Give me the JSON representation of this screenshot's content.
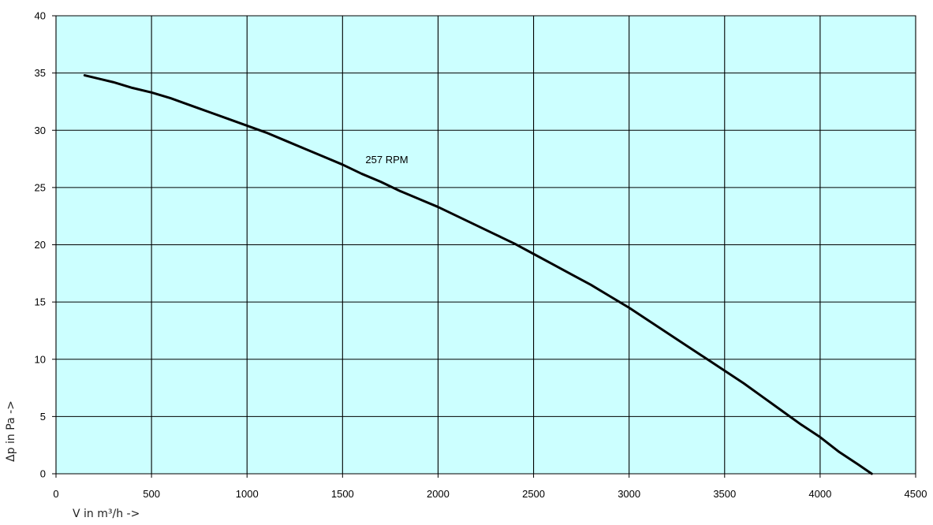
{
  "chart_data": {
    "type": "line",
    "title": "",
    "xlabel": "V in m³/h ->",
    "ylabel": "Δp in Pa ->",
    "xlim": [
      0,
      4500
    ],
    "ylim": [
      0,
      40
    ],
    "x_ticks": [
      0,
      500,
      1000,
      1500,
      2000,
      2500,
      3000,
      3500,
      4000,
      4500
    ],
    "y_ticks": [
      0,
      5,
      10,
      15,
      20,
      25,
      30,
      35,
      40
    ],
    "grid": true,
    "legend": "none",
    "plot_background": "#ccffff",
    "series": [
      {
        "name": "257 RPM",
        "color": "#000000",
        "x": [
          150,
          200,
          300,
          400,
          500,
          600,
          700,
          800,
          900,
          1000,
          1100,
          1200,
          1300,
          1400,
          1500,
          1600,
          1700,
          1800,
          1900,
          2000,
          2100,
          2200,
          2300,
          2400,
          2500,
          2600,
          2700,
          2800,
          2900,
          3000,
          3100,
          3200,
          3300,
          3400,
          3500,
          3600,
          3700,
          3800,
          3900,
          4000,
          4100,
          4200,
          4270
        ],
        "y": [
          34.8,
          34.6,
          34.2,
          33.7,
          33.3,
          32.8,
          32.2,
          31.6,
          31.0,
          30.4,
          29.8,
          29.1,
          28.4,
          27.7,
          27.0,
          26.2,
          25.5,
          24.7,
          24.0,
          23.3,
          22.5,
          21.7,
          20.9,
          20.1,
          19.2,
          18.3,
          17.4,
          16.5,
          15.5,
          14.5,
          13.4,
          12.3,
          11.2,
          10.1,
          9.0,
          7.9,
          6.7,
          5.5,
          4.3,
          3.2,
          1.9,
          0.8,
          0.0
        ]
      }
    ],
    "annotations": [
      {
        "text": "257 RPM",
        "x": 1620,
        "y": 27.4
      }
    ]
  }
}
